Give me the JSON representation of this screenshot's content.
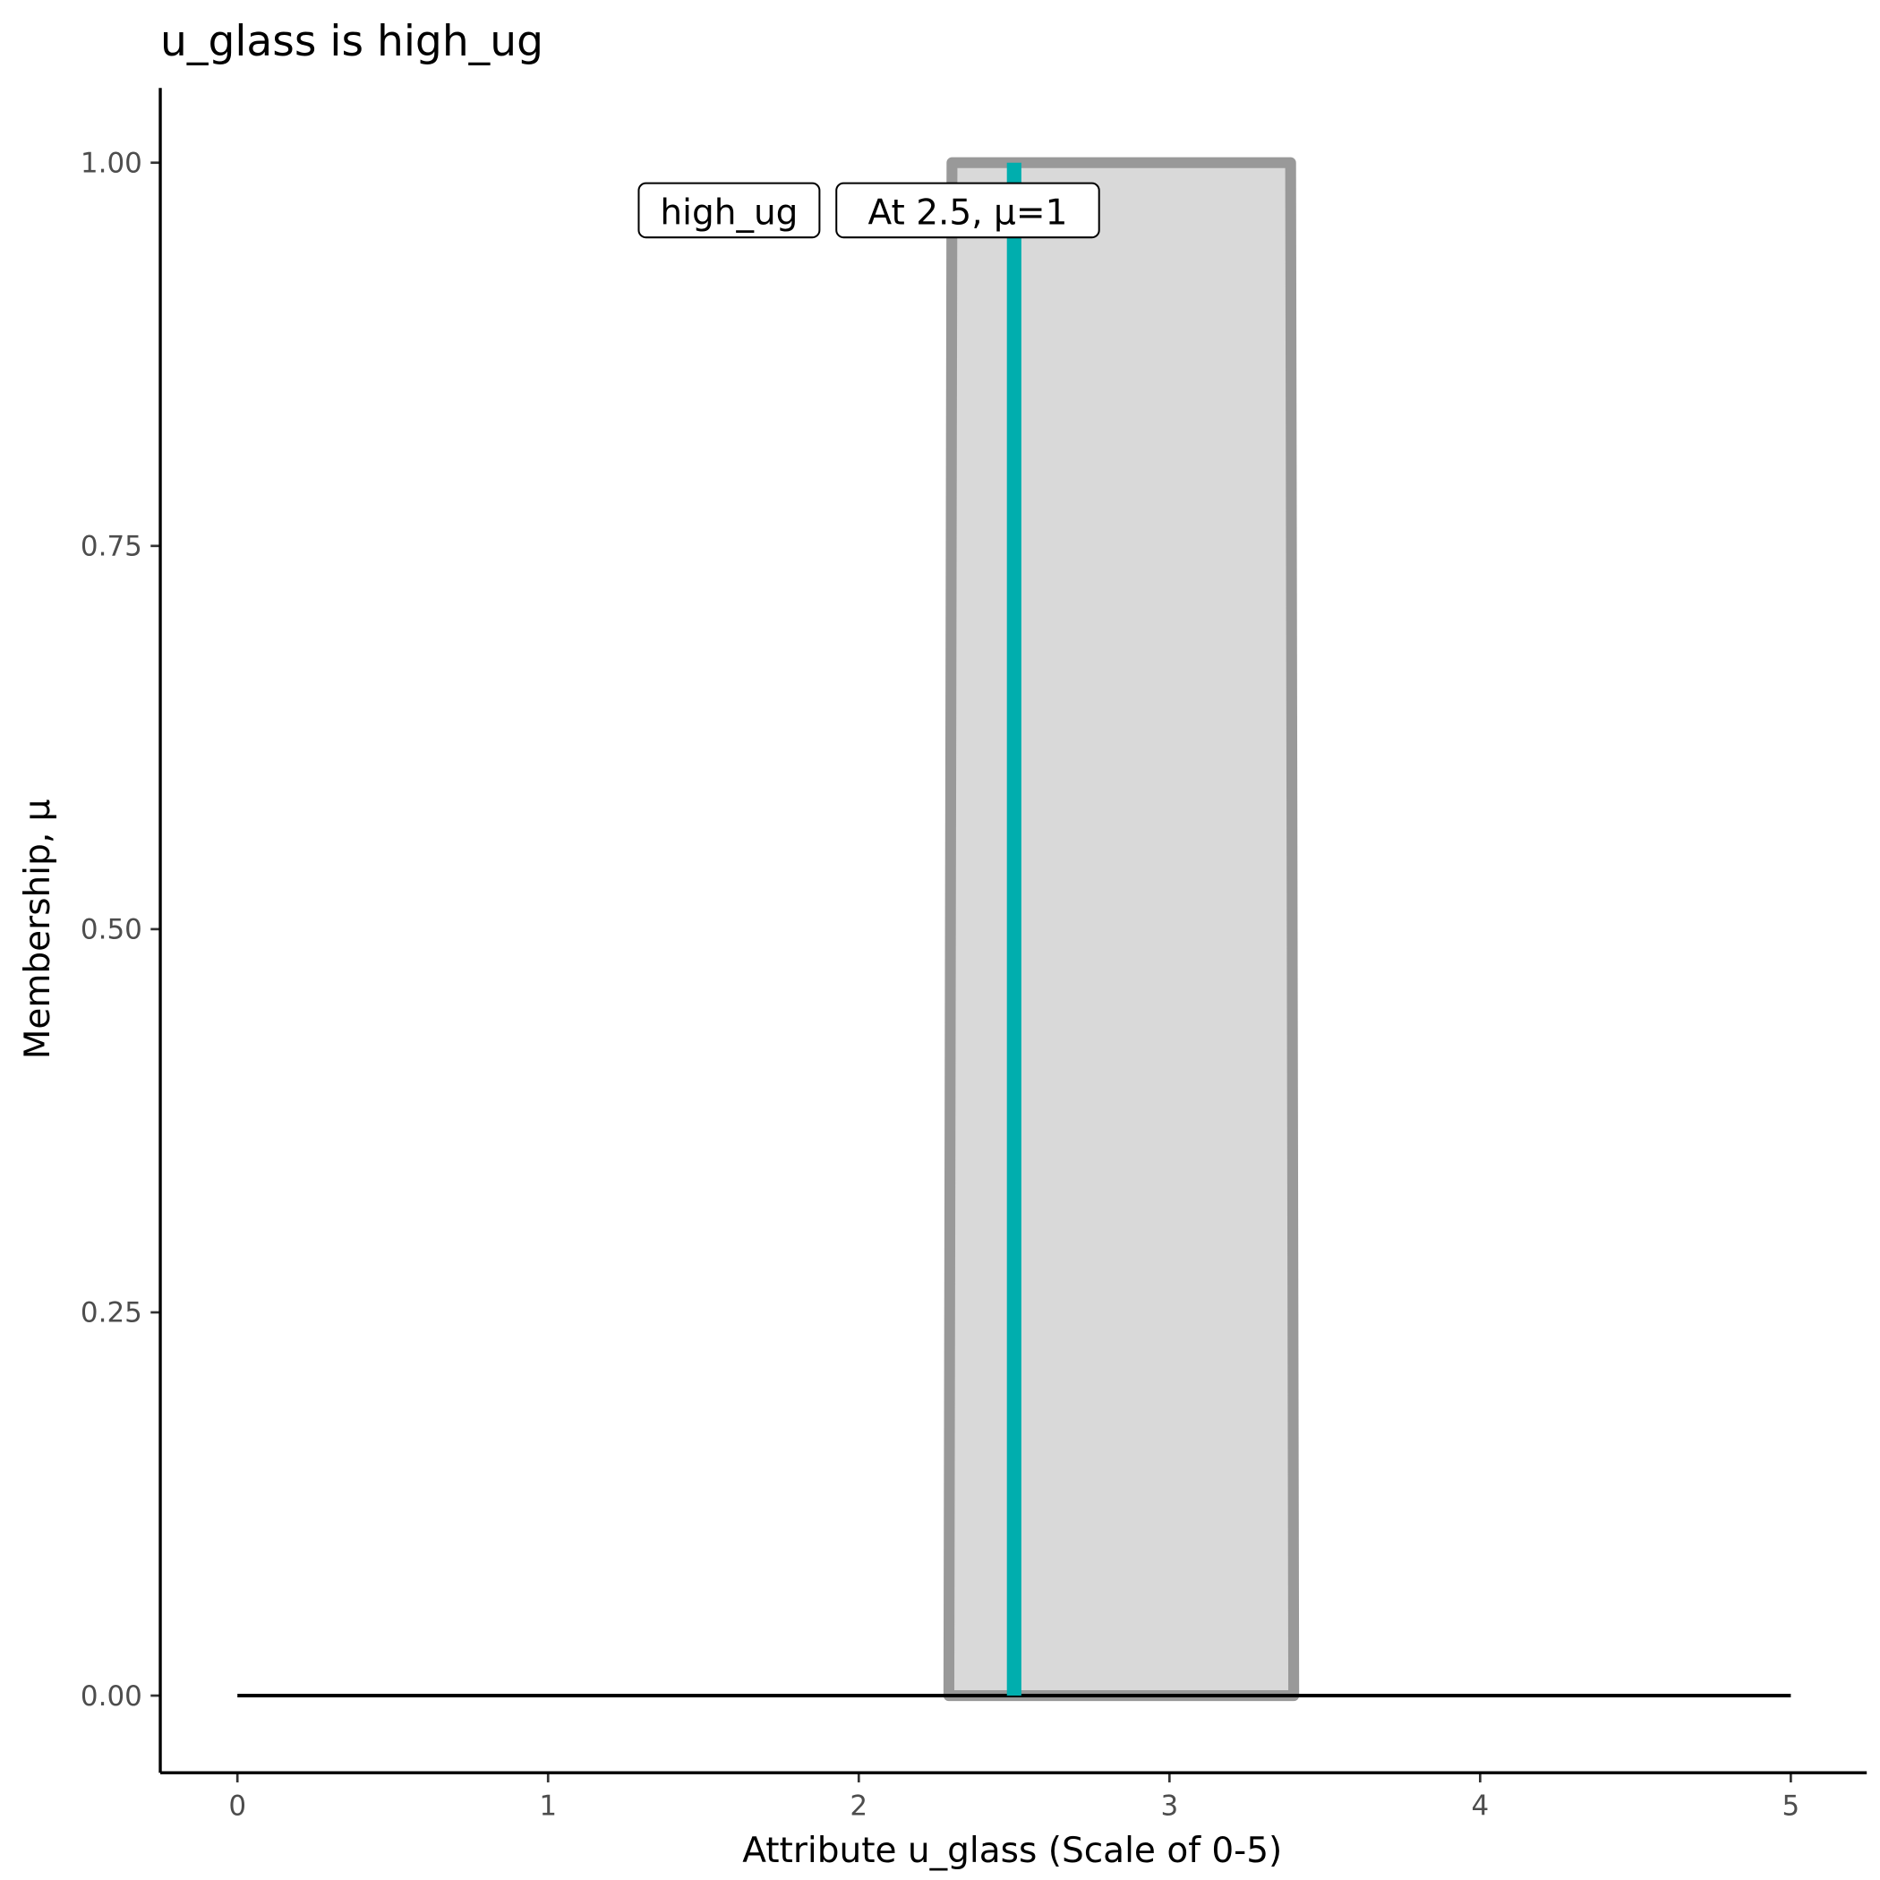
{
  "chart_data": {
    "type": "area",
    "title": "u_glass is high_ug",
    "xlabel": "Attribute u_glass (Scale of 0-5)",
    "ylabel": "Membership, μ",
    "xlim": [
      -0.25,
      5.25
    ],
    "ylim": [
      -0.05,
      1.05
    ],
    "x_ticks": [
      "0",
      "1",
      "2",
      "3",
      "4",
      "5"
    ],
    "y_ticks": [
      "0.00",
      "0.25",
      "0.50",
      "0.75",
      "1.00"
    ],
    "grid": false,
    "membership_set": {
      "name": "high_ug",
      "x": [
        2.29,
        2.3,
        3.39,
        3.4
      ],
      "y": [
        0,
        1,
        1,
        0
      ]
    },
    "baseline": {
      "x": [
        0,
        5
      ],
      "y": [
        0,
        0
      ]
    },
    "marker": {
      "x": 2.5,
      "mu": 1
    },
    "annotations": [
      {
        "text": "high_ug",
        "x": 2.5,
        "y": 0.97
      },
      {
        "text": "At 2.5, μ=1",
        "x": 2.5,
        "y": 0.97
      }
    ],
    "colors": {
      "fill": "#d9d9d9",
      "outline": "#999999",
      "marker": "#00aeae",
      "baseline": "#000000"
    }
  }
}
